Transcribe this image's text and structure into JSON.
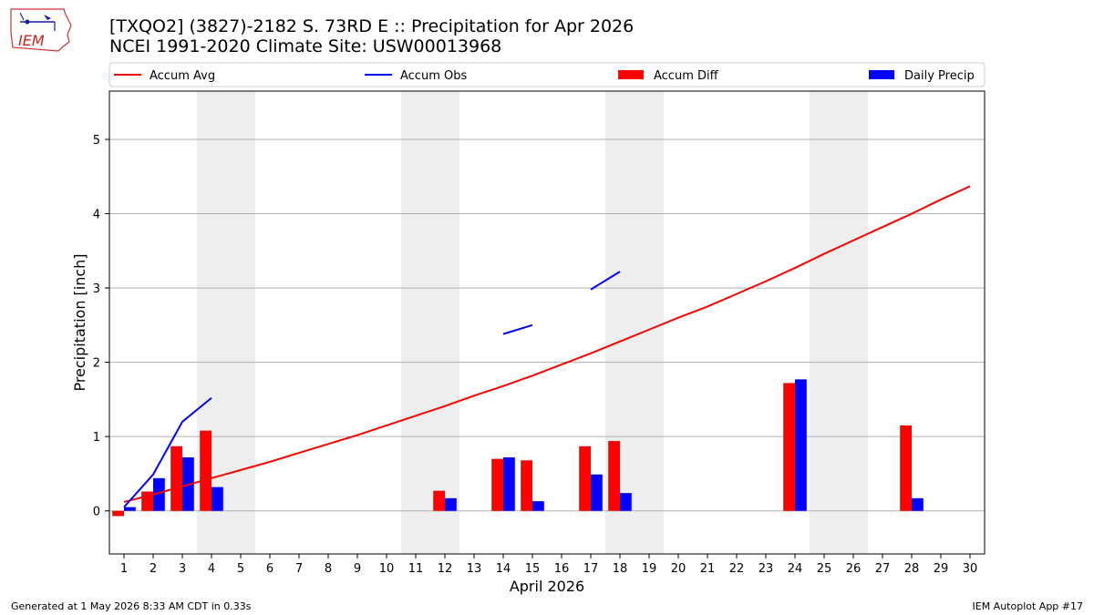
{
  "header": {
    "title": "[TXQO2] (3827)-2182 S. 73RD E :: Precipitation for Apr 2026",
    "subtitle": "NCEI 1991-2020 Climate Site: USW00013968",
    "logo_text": "IEM"
  },
  "footer": {
    "left": "Generated at 1 May 2026 8:33 AM CDT in 0.33s",
    "right": "IEM Autoplot App #17"
  },
  "chart_data": {
    "type": "bar",
    "title": "[TXQO2] (3827)-2182 S. 73RD E :: Precipitation for Apr 2026",
    "subtitle": "NCEI 1991-2020 Climate Site: USW00013968",
    "xlabel": "April 2026",
    "ylabel": "Precipitation [inch]",
    "xlim": [
      0.5,
      30.5
    ],
    "ylim": [
      -0.58,
      5.65
    ],
    "x_ticks": [
      1,
      2,
      3,
      4,
      5,
      6,
      7,
      8,
      9,
      10,
      11,
      12,
      13,
      14,
      15,
      16,
      17,
      18,
      19,
      20,
      21,
      22,
      23,
      24,
      25,
      26,
      27,
      28,
      29,
      30
    ],
    "y_ticks": [
      0,
      1,
      2,
      3,
      4,
      5
    ],
    "grid": "horizontal",
    "weekend_bands": [
      [
        3.5,
        5.5
      ],
      [
        10.5,
        12.5
      ],
      [
        17.5,
        19.5
      ],
      [
        24.5,
        26.5
      ]
    ],
    "legend": {
      "placement": "top",
      "entries": [
        {
          "label": "Accum Avg",
          "kind": "line",
          "color": "#ff0000"
        },
        {
          "label": "Accum Obs",
          "kind": "line",
          "color": "#0000ff"
        },
        {
          "label": "Accum Diff",
          "kind": "bar",
          "color": "#ff0000"
        },
        {
          "label": "Daily Precip",
          "kind": "bar",
          "color": "#0000ff"
        }
      ]
    },
    "series": [
      {
        "name": "Accum Avg",
        "kind": "line",
        "color": "#ff0000",
        "x": [
          1,
          2,
          3,
          4,
          5,
          6,
          7,
          8,
          9,
          10,
          11,
          12,
          13,
          14,
          15,
          16,
          17,
          18,
          19,
          20,
          21,
          22,
          23,
          24,
          25,
          26,
          27,
          28,
          29,
          30
        ],
        "values": [
          0.12,
          0.22,
          0.33,
          0.44,
          0.55,
          0.66,
          0.78,
          0.9,
          1.02,
          1.15,
          1.28,
          1.41,
          1.55,
          1.68,
          1.82,
          1.97,
          2.12,
          2.28,
          2.44,
          2.6,
          2.75,
          2.92,
          3.09,
          3.27,
          3.46,
          3.64,
          3.82,
          4.0,
          4.19,
          4.37
        ]
      },
      {
        "name": "Accum Obs",
        "kind": "line",
        "color": "#0000ff",
        "segments": [
          {
            "x": [
              1,
              2,
              3,
              4
            ],
            "values": [
              0.05,
              0.49,
              1.2,
              1.52
            ]
          },
          {
            "x": [
              14,
              15
            ],
            "values": [
              2.38,
              2.5
            ]
          },
          {
            "x": [
              17,
              18
            ],
            "values": [
              2.98,
              3.22
            ]
          }
        ]
      },
      {
        "name": "Accum Diff",
        "kind": "bar",
        "color": "#ff0000",
        "x": [
          1,
          2,
          3,
          4,
          12,
          14,
          15,
          17,
          18,
          24,
          28
        ],
        "values": [
          -0.07,
          0.26,
          0.87,
          1.08,
          0.27,
          0.7,
          0.68,
          0.87,
          0.94,
          1.72,
          1.15
        ]
      },
      {
        "name": "Daily Precip",
        "kind": "bar",
        "color": "#0000ff",
        "x": [
          1,
          2,
          3,
          4,
          12,
          14,
          15,
          17,
          18,
          24,
          28
        ],
        "values": [
          0.05,
          0.44,
          0.72,
          0.32,
          0.17,
          0.72,
          0.13,
          0.49,
          0.24,
          1.77,
          0.17
        ]
      }
    ]
  }
}
